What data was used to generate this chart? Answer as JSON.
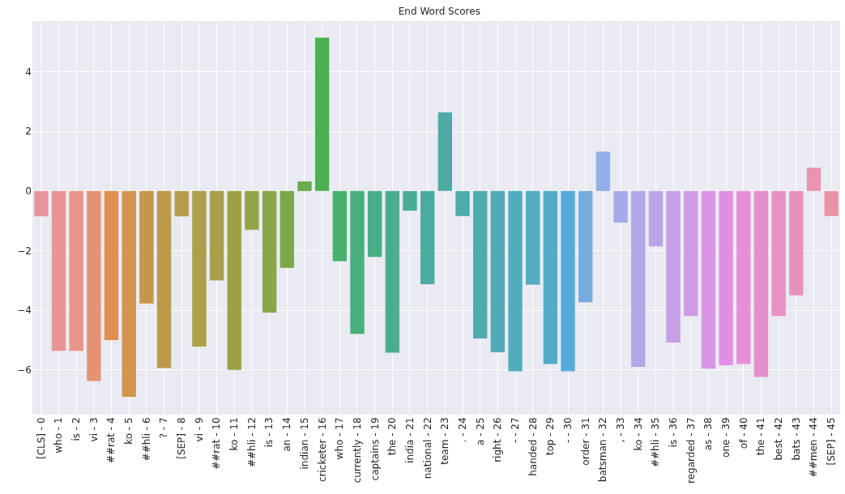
{
  "chart_data": {
    "type": "bar",
    "title": "End Word Scores",
    "categories": [
      "[CLS] - 0",
      "who - 1",
      "is - 2",
      "vi - 3",
      "##rat - 4",
      "ko - 5",
      "##hli - 6",
      "? - 7",
      "[SEP] - 8",
      "vi - 9",
      "##rat - 10",
      "ko - 11",
      "##hli - 12",
      "is - 13",
      "an - 14",
      "indian - 15",
      "cricketer - 16",
      "who - 17",
      "currently - 18",
      "captains - 19",
      "the - 20",
      "india - 21",
      "national - 22",
      "team - 23",
      ". - 24",
      "a - 25",
      "right - 26",
      "- - 27",
      "handed - 28",
      "top - 29",
      "- - 30",
      "order - 31",
      "batsman - 32",
      ", - 33",
      "ko - 34",
      "##hli - 35",
      "is - 36",
      "regarded - 37",
      "as - 38",
      "one - 39",
      "of - 40",
      "the - 41",
      "best - 42",
      "bats - 43",
      "##men - 44",
      "[SEP] - 45"
    ],
    "values": [
      -0.85,
      -5.36,
      -5.36,
      -6.37,
      -5.0,
      -6.9,
      -3.77,
      -5.94,
      -0.85,
      -5.22,
      -3.0,
      -6.0,
      -1.3,
      -4.08,
      -2.58,
      0.32,
      5.14,
      -2.35,
      -4.79,
      -2.21,
      -5.42,
      -0.66,
      -3.13,
      2.64,
      -0.84,
      -4.95,
      -5.41,
      -6.05,
      -3.14,
      -5.8,
      -6.05,
      -3.73,
      1.32,
      -1.06,
      -5.9,
      -1.86,
      -5.08,
      -4.19,
      -5.96,
      -5.84,
      -5.8,
      -6.24,
      -4.19,
      -3.5,
      0.78,
      -0.84
    ],
    "colors": [
      "#e8949e",
      "#e89596",
      "#e8958a",
      "#e49473",
      "#df8f52",
      "#d19550",
      "#c6974a",
      "#bc9a4a",
      "#b59c4a",
      "#ae9f4a",
      "#a5a049",
      "#9ca244",
      "#92a547",
      "#88a748",
      "#7aa94a",
      "#6aad4c",
      "#4bb050",
      "#49b06e",
      "#48b07c",
      "#49ae87",
      "#4aad90",
      "#4bac98",
      "#4caba0",
      "#4eaaa4",
      "#4eaaaa",
      "#4fabb0",
      "#50abb6",
      "#51acbc",
      "#52acc2",
      "#54acc8",
      "#58abd9",
      "#78acde",
      "#93b0e6",
      "#a3abe8",
      "#b1a8e8",
      "#bca5e6",
      "#c69fe6",
      "#d09be4",
      "#da94e6",
      "#e08fe4",
      "#e690d8",
      "#e78ecc",
      "#e891c4",
      "#e892bb",
      "#e894b2",
      "#e894a6"
    ],
    "ylim": [
      -7.5,
      5.7
    ],
    "yticks": [
      {
        "value": -6,
        "label": "−6"
      },
      {
        "value": -4,
        "label": "−4"
      },
      {
        "value": -2,
        "label": "−2"
      },
      0,
      2,
      4
    ],
    "grid": true
  }
}
